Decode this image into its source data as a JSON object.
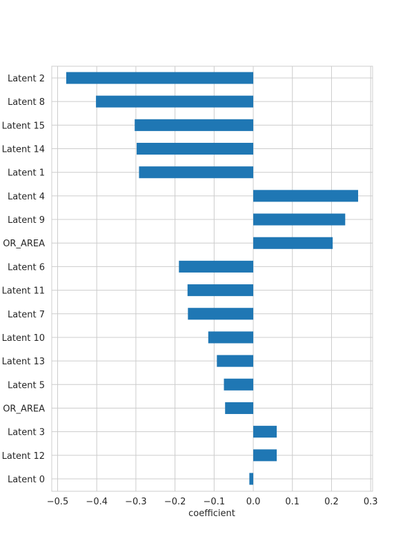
{
  "chart_data": {
    "type": "bar",
    "orientation": "horizontal",
    "categories": [
      "Latent 0",
      "Latent 12",
      "Latent 3",
      "OR_AREA",
      "Latent 5",
      "Latent 13",
      "Latent 10",
      "Latent 7",
      "Latent 11",
      "Latent 6",
      "OR_AREA",
      "Latent 9",
      "Latent 4",
      "Latent 1",
      "Latent 14",
      "Latent 15",
      "Latent 8",
      "Latent 2"
    ],
    "values": [
      -0.01,
      0.06,
      0.06,
      -0.072,
      -0.075,
      -0.093,
      -0.115,
      -0.167,
      -0.168,
      -0.19,
      0.203,
      0.235,
      0.268,
      -0.292,
      -0.298,
      -0.303,
      -0.402,
      -0.478
    ],
    "title": "",
    "xlabel": "coefficient",
    "ylabel": "",
    "xlim": [
      -0.515,
      0.305
    ],
    "xticks": [
      -0.5,
      -0.4,
      -0.3,
      -0.2,
      -0.1,
      0.0,
      0.1,
      0.2,
      0.3
    ],
    "xtick_labels": [
      "−0.5",
      "−0.4",
      "−0.3",
      "−0.2",
      "−0.1",
      "0.0",
      "0.1",
      "0.2",
      "0.3"
    ],
    "grid": true,
    "bar_color": "#1f77b4"
  }
}
